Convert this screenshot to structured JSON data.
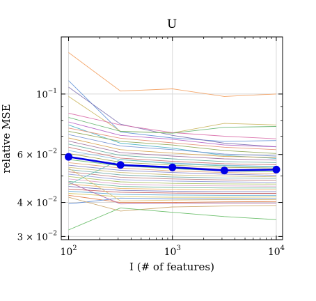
{
  "chart_data": {
    "type": "line",
    "title": "U",
    "xlabel": "I  (# of features)",
    "ylabel": "relative MSE",
    "x": [
      100,
      316.23,
      1000,
      3162.28,
      10000
    ],
    "x_scale": "log",
    "y_scale": "log",
    "xlim": [
      85,
      11500
    ],
    "ylim": [
      0.0292,
      0.162
    ],
    "x_ticks": [
      {
        "value": 100,
        "base": "10",
        "exp": "2"
      },
      {
        "value": 1000,
        "base": "10",
        "exp": "3"
      },
      {
        "value": 10000,
        "base": "10",
        "exp": "4"
      }
    ],
    "y_ticks": [
      {
        "value": 0.1,
        "mant": "",
        "base": "10",
        "exp": "−1"
      },
      {
        "value": 0.06,
        "mant": "6 × ",
        "base": "10",
        "exp": "−2"
      },
      {
        "value": 0.04,
        "mant": "4 × ",
        "base": "10",
        "exp": "−2"
      },
      {
        "value": 0.03,
        "mant": "3 × ",
        "base": "10",
        "exp": "−2"
      }
    ],
    "grid": true,
    "mean_series": {
      "color": "#0000e6",
      "values": [
        0.0588,
        0.0549,
        0.0538,
        0.0524,
        0.0528
      ]
    },
    "series": [
      {
        "color": "#f39c5a",
        "values": [
          0.142,
          0.1025,
          0.1045,
          0.098,
          0.1
        ]
      },
      {
        "color": "#5c8fd6",
        "values": [
          0.112,
          0.0725,
          0.069,
          0.067,
          0.0675
        ]
      },
      {
        "color": "#7a6fb0",
        "values": [
          0.106,
          0.0775,
          0.0705,
          0.066,
          0.064
        ]
      },
      {
        "color": "#c9b45a",
        "values": [
          0.098,
          0.073,
          0.072,
          0.078,
          0.077
        ]
      },
      {
        "color": "#d96ba8",
        "values": [
          0.085,
          0.077,
          0.0722,
          0.07,
          0.0685
        ]
      },
      {
        "color": "#5fb16a",
        "values": [
          0.082,
          0.073,
          0.0718,
          0.0755,
          0.076
        ]
      },
      {
        "color": "#b05cc4",
        "values": [
          0.079,
          0.0705,
          0.0682,
          0.065,
          0.064
        ]
      },
      {
        "color": "#45b0c4",
        "values": [
          0.077,
          0.066,
          0.0633,
          0.0595,
          0.058
        ]
      },
      {
        "color": "#e38b70",
        "values": [
          0.075,
          0.0688,
          0.0662,
          0.0638,
          0.0625
        ]
      },
      {
        "color": "#8aa34d",
        "values": [
          0.073,
          0.067,
          0.065,
          0.062,
          0.0605
        ]
      },
      {
        "color": "#6f8ccf",
        "values": [
          0.071,
          0.0645,
          0.0625,
          0.0602,
          0.0592
        ]
      },
      {
        "color": "#d4a04a",
        "values": [
          0.069,
          0.0625,
          0.0607,
          0.059,
          0.0585
        ]
      },
      {
        "color": "#9c6b9a",
        "values": [
          0.0672,
          0.061,
          0.0592,
          0.0578,
          0.0572
        ]
      },
      {
        "color": "#5fa89a",
        "values": [
          0.0655,
          0.0595,
          0.0578,
          0.0565,
          0.056
        ]
      },
      {
        "color": "#c46a6a",
        "values": [
          0.0638,
          0.0582,
          0.0566,
          0.0555,
          0.055
        ]
      },
      {
        "color": "#7fb8e0",
        "values": [
          0.062,
          0.0574,
          0.0558,
          0.0548,
          0.0542
        ]
      },
      {
        "color": "#a0a04a",
        "values": [
          0.0605,
          0.0562,
          0.0548,
          0.0538,
          0.0535
        ]
      },
      {
        "color": "#d088c0",
        "values": [
          0.059,
          0.0552,
          0.054,
          0.053,
          0.0527
        ]
      },
      {
        "color": "#6ab86a",
        "values": [
          0.0575,
          0.0545,
          0.0532,
          0.0522,
          0.0518
        ]
      },
      {
        "color": "#e0a070",
        "values": [
          0.056,
          0.0535,
          0.0522,
          0.0515,
          0.051
        ]
      },
      {
        "color": "#8080c8",
        "values": [
          0.0548,
          0.0525,
          0.0515,
          0.0508,
          0.0503
        ]
      },
      {
        "color": "#c8b870",
        "values": [
          0.0538,
          0.0515,
          0.0505,
          0.05,
          0.0497
        ]
      },
      {
        "color": "#70a8a8",
        "values": [
          0.0528,
          0.0505,
          0.0496,
          0.0492,
          0.049
        ]
      },
      {
        "color": "#b87878",
        "values": [
          0.0518,
          0.0495,
          0.0488,
          0.0484,
          0.0482
        ]
      },
      {
        "color": "#9098d8",
        "values": [
          0.0508,
          0.0485,
          0.0479,
          0.0476,
          0.0474
        ]
      },
      {
        "color": "#a8c060",
        "values": [
          0.0498,
          0.0476,
          0.047,
          0.0468,
          0.0467
        ]
      },
      {
        "color": "#d8a0c8",
        "values": [
          0.0488,
          0.0467,
          0.0462,
          0.046,
          0.0459
        ]
      },
      {
        "color": "#60b090",
        "values": [
          0.0478,
          0.0458,
          0.0454,
          0.0452,
          0.0452
        ]
      },
      {
        "color": "#e8b060",
        "values": [
          0.0468,
          0.045,
          0.0447,
          0.0445,
          0.0445
        ]
      },
      {
        "color": "#7070b8",
        "values": [
          0.0458,
          0.0443,
          0.044,
          0.0438,
          0.0438
        ]
      },
      {
        "color": "#c05050",
        "values": [
          0.0448,
          0.0436,
          0.0433,
          0.0432,
          0.0432
        ]
      },
      {
        "color": "#50a0d0",
        "values": [
          0.044,
          0.0428,
          0.0426,
          0.0425,
          0.0425
        ]
      },
      {
        "color": "#d0c050",
        "values": [
          0.0432,
          0.042,
          0.0418,
          0.0418,
          0.0419
        ]
      },
      {
        "color": "#e07840",
        "values": [
          0.0425,
          0.04,
          0.04,
          0.0402,
          0.0403
        ]
      },
      {
        "color": "#5a8ad6",
        "values": [
          0.0395,
          0.0415,
          0.0412,
          0.0412,
          0.0413
        ]
      },
      {
        "color": "#c8a060",
        "values": [
          0.0418,
          0.0372,
          0.0385,
          0.0388,
          0.039
        ]
      },
      {
        "color": "#b060a0",
        "values": [
          0.0475,
          0.0395,
          0.0397,
          0.0398,
          0.0398
        ]
      },
      {
        "color": "#5cb85c",
        "values": [
          0.0317,
          0.0382,
          0.0368,
          0.0355,
          0.0346
        ]
      },
      {
        "color": "#e0c070",
        "values": [
          0.0535,
          0.0405,
          0.0408,
          0.041,
          0.041
        ]
      },
      {
        "color": "#60c0b0",
        "values": [
          0.0465,
          0.0575,
          0.0555,
          0.0545,
          0.054
        ]
      }
    ]
  }
}
